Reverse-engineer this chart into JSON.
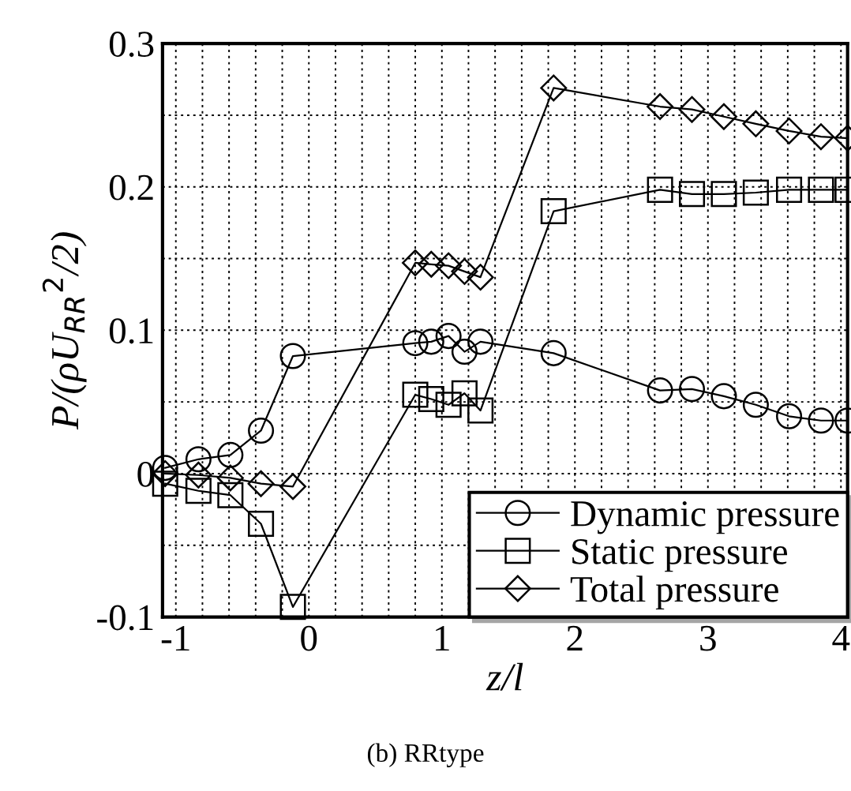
{
  "chart_data": {
    "type": "line",
    "xlabel": "z/l",
    "ylabel": "P/(ρU$_{RR}$$^{2}$/2)",
    "annotations": [
      "(b) RRtype"
    ],
    "x": [
      -1.08,
      -0.83,
      -0.59,
      -0.36,
      -0.12,
      0.8,
      0.92,
      1.05,
      1.17,
      1.29,
      1.84,
      2.64,
      2.88,
      3.12,
      3.36,
      3.61,
      3.85,
      4.05
    ],
    "series": [
      {
        "name": "Dynamic pressure",
        "color": "#000000",
        "marker": "circle",
        "values": [
          0.004,
          0.01,
          0.013,
          0.03,
          0.082,
          0.091,
          0.092,
          0.096,
          0.085,
          0.092,
          0.084,
          0.058,
          0.059,
          0.054,
          0.048,
          0.04,
          0.037,
          0.037
        ]
      },
      {
        "name": "Static pressure",
        "color": "#000000",
        "marker": "square",
        "values": [
          -0.007,
          -0.012,
          -0.015,
          -0.035,
          -0.093,
          0.055,
          0.052,
          0.048,
          0.056,
          0.044,
          0.183,
          0.198,
          0.195,
          0.195,
          0.196,
          0.198,
          0.198,
          0.198
        ]
      },
      {
        "name": "Total pressure",
        "color": "#000000",
        "marker": "diamond",
        "values": [
          0.0,
          -0.001,
          -0.003,
          -0.007,
          -0.009,
          0.147,
          0.146,
          0.145,
          0.141,
          0.137,
          0.269,
          0.256,
          0.254,
          0.249,
          0.244,
          0.239,
          0.235,
          0.234
        ]
      }
    ],
    "xlim": [
      -1.1,
      4.05
    ],
    "ylim": [
      -0.1,
      0.3
    ],
    "xticks": [
      {
        "value": -1,
        "label": "-1"
      },
      {
        "value": -0.8,
        "label": null
      },
      {
        "value": -0.6,
        "label": null
      },
      {
        "value": -0.4,
        "label": null
      },
      {
        "value": -0.2,
        "label": null
      },
      0,
      {
        "value": 0.2,
        "label": null
      },
      {
        "value": 0.4,
        "label": null
      },
      {
        "value": 0.6,
        "label": null
      },
      {
        "value": 0.8,
        "label": null
      },
      1,
      {
        "value": 1.2,
        "label": null
      },
      {
        "value": 1.4,
        "label": null
      },
      {
        "value": 1.6,
        "label": null
      },
      {
        "value": 1.8,
        "label": null
      },
      2,
      {
        "value": 2.2,
        "label": null
      },
      {
        "value": 2.4,
        "label": null
      },
      {
        "value": 2.6,
        "label": null
      },
      {
        "value": 2.8,
        "label": null
      },
      3,
      {
        "value": 3.2,
        "label": null
      },
      {
        "value": 3.4,
        "label": null
      },
      {
        "value": 3.6,
        "label": null
      },
      {
        "value": 3.8,
        "label": null
      },
      4
    ],
    "yticks": [
      {
        "value": -0.1,
        "label": "-0.1"
      },
      {
        "value": -0.05,
        "label": null
      },
      0,
      {
        "value": 0.05,
        "label": null
      },
      0.1,
      {
        "value": 0.15,
        "label": null
      },
      0.2,
      {
        "value": 0.25,
        "label": null
      },
      0.3
    ],
    "grid": true,
    "legend": "bottom right",
    "line_style": "solid"
  }
}
